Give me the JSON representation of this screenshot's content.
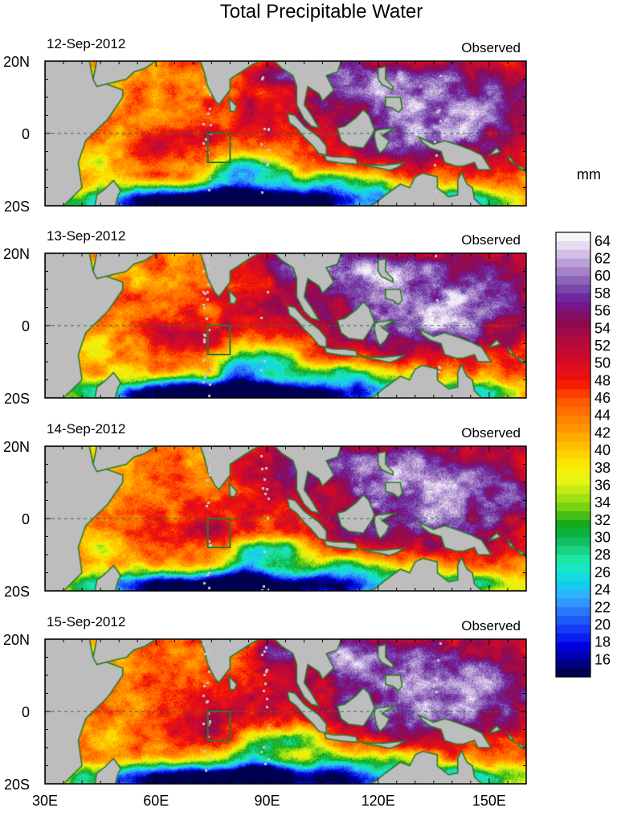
{
  "chart_data": {
    "type": "heatmap",
    "title": "Total Precipitable Water",
    "units": "mm",
    "x_axis": {
      "range_deg_east": [
        30,
        160
      ],
      "ticks": [
        30,
        60,
        90,
        120,
        150
      ],
      "tick_labels": [
        "30E",
        "60E",
        "90E",
        "120E",
        "150E"
      ]
    },
    "y_axis": {
      "range_deg_north": [
        -20,
        20
      ],
      "ticks": [
        20,
        0,
        -20
      ],
      "tick_labels": [
        "20N",
        "0",
        "20S"
      ]
    },
    "box_region": {
      "lon": [
        74,
        80
      ],
      "lat": [
        -8,
        0
      ]
    },
    "panels": [
      {
        "date": "12-Sep-2012",
        "label": "Observed"
      },
      {
        "date": "13-Sep-2012",
        "label": "Observed"
      },
      {
        "date": "14-Sep-2012",
        "label": "Observed"
      },
      {
        "date": "15-Sep-2012",
        "label": "Observed"
      }
    ],
    "colorbar": {
      "labels": [
        "64",
        "62",
        "60",
        "58",
        "56",
        "54",
        "52",
        "50",
        "48",
        "46",
        "44",
        "42",
        "40",
        "38",
        "36",
        "34",
        "32",
        "30",
        "28",
        "26",
        "24",
        "22",
        "20",
        "18",
        "16"
      ],
      "levels": [
        14,
        15,
        16,
        17,
        18,
        19,
        20,
        21,
        22,
        23,
        24,
        25,
        26,
        27,
        28,
        29,
        30,
        31,
        32,
        33,
        34,
        35,
        36,
        37,
        38,
        39,
        40,
        41,
        42,
        43,
        44,
        45,
        46,
        47,
        48,
        49,
        50,
        51,
        52,
        53,
        54,
        55,
        56,
        57,
        58,
        59,
        60,
        61,
        62,
        63,
        64,
        65
      ],
      "colors": [
        "#000050",
        "#000080",
        "#0000b4",
        "#0000e0",
        "#0a1ef0",
        "#143cf5",
        "#1e5af8",
        "#2878fa",
        "#3296fc",
        "#2db4fa",
        "#14ccf0",
        "#14dcdc",
        "#19e6c3",
        "#1ee6a5",
        "#19d282",
        "#14be64",
        "#0ab43c",
        "#14aa1e",
        "#46be14",
        "#78d214",
        "#a0e114",
        "#c8eb14",
        "#e6f514",
        "#f5f00a",
        "#fae600",
        "#ffd200",
        "#ffbe00",
        "#ffaa00",
        "#ff9600",
        "#ff8200",
        "#ff6e00",
        "#ff5a00",
        "#ff3c00",
        "#f51e00",
        "#eb0f0f",
        "#e10f1e",
        "#d20a28",
        "#c30a32",
        "#b40a3c",
        "#a00a46",
        "#8c0a50",
        "#820f64",
        "#78148c",
        "#6e28a0",
        "#7846aa",
        "#8c64b9",
        "#a582c8",
        "#b9a0d7",
        "#d2bee6",
        "#e6dcf0",
        "#f8f5fa"
      ]
    }
  }
}
